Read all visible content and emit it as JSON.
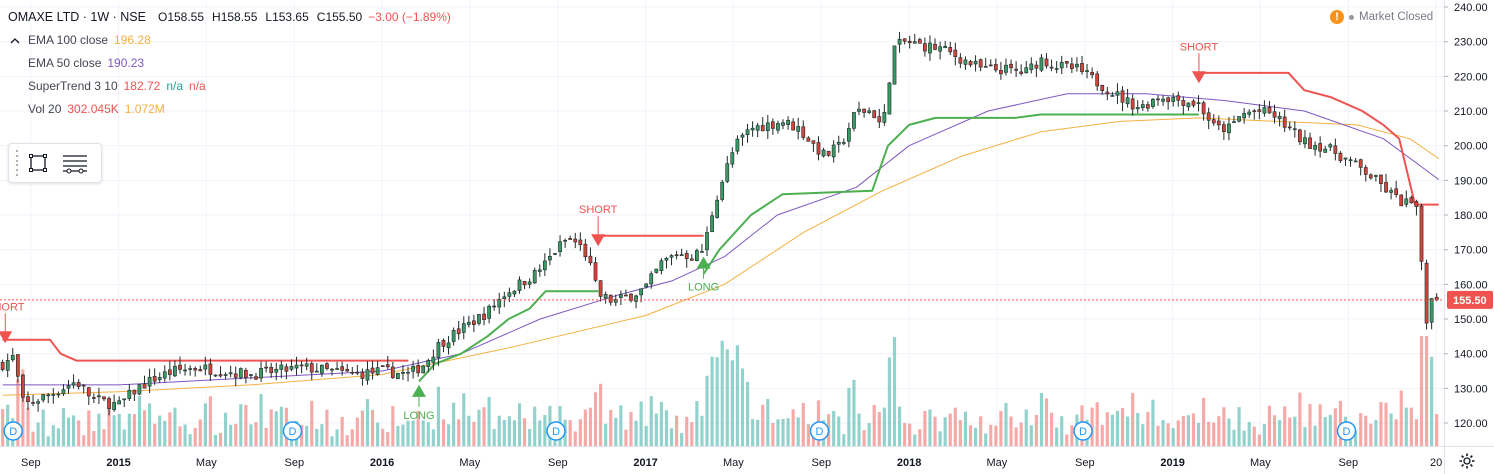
{
  "header": {
    "title": "OMAXE LTD · 1W · NSE",
    "open": "O158.55",
    "high": "H158.55",
    "low": "L153.65",
    "close": "C155.50",
    "change": "−3.00 (−1.89%)"
  },
  "indicators": [
    {
      "name": "EMA 100 close",
      "value": "196.28",
      "color": "#f5b041"
    },
    {
      "name": "EMA 50 close",
      "value": "190.23",
      "color": "#7e57c2"
    },
    {
      "name": "SuperTrend 3 10",
      "value": "182.72",
      "extra1": "n/a",
      "extra2": "n/a",
      "color": "#ef5350",
      "extra1_color": "#26a69a",
      "extra2_color": "#ef5350"
    },
    {
      "name": "Vol 20",
      "value": "302.045K",
      "extra1": "1.072M",
      "color": "#ef5350",
      "extra1_color": "#f5b041"
    }
  ],
  "market_status": "Market Closed",
  "icons": {
    "warning": "warning-icon",
    "settings": "gear-icon",
    "rect": "rectangle-tool-icon",
    "lines": "lines-tool-icon"
  },
  "chart_data": {
    "type": "candlestick",
    "symbol": "OMAXE LTD",
    "interval": "1W",
    "exchange": "NSE",
    "ylim": [
      115,
      240
    ],
    "y_ticks": [
      120,
      130,
      140,
      150,
      160,
      170,
      180,
      190,
      200,
      210,
      220,
      230,
      240
    ],
    "y_tick_labels": [
      "120.00",
      "130.00",
      "140.00",
      "150.00",
      "160.00",
      "170.00",
      "180.00",
      "190.00",
      "200.00",
      "210.00",
      "220.00",
      "230.00",
      "240.00"
    ],
    "x_ticks": [
      {
        "label": "Sep",
        "t": 2014.667
      },
      {
        "label": "2015",
        "t": 2015.0
      },
      {
        "label": "May",
        "t": 2015.333
      },
      {
        "label": "Sep",
        "t": 2015.667
      },
      {
        "label": "2016",
        "t": 2016.0
      },
      {
        "label": "May",
        "t": 2016.333
      },
      {
        "label": "Sep",
        "t": 2016.667
      },
      {
        "label": "2017",
        "t": 2017.0
      },
      {
        "label": "May",
        "t": 2017.333
      },
      {
        "label": "Sep",
        "t": 2017.667
      },
      {
        "label": "2018",
        "t": 2018.0
      },
      {
        "label": "May",
        "t": 2018.333
      },
      {
        "label": "Sep",
        "t": 2018.667
      },
      {
        "label": "2019",
        "t": 2019.0
      },
      {
        "label": "May",
        "t": 2019.333
      },
      {
        "label": "Sep",
        "t": 2019.667
      },
      {
        "label": "20",
        "t": 2020.0
      }
    ],
    "x_range": [
      2014.55,
      2020.03
    ],
    "last_price": 155.5,
    "last_price_label": "155.50",
    "price_anchors": [
      [
        2014.56,
        137
      ],
      [
        2014.6,
        139
      ],
      [
        2014.64,
        125
      ],
      [
        2014.7,
        127
      ],
      [
        2014.76,
        129
      ],
      [
        2014.84,
        132
      ],
      [
        2014.9,
        127
      ],
      [
        2015.0,
        125
      ],
      [
        2015.07,
        130
      ],
      [
        2015.14,
        133
      ],
      [
        2015.21,
        135
      ],
      [
        2015.3,
        136
      ],
      [
        2015.4,
        135
      ],
      [
        2015.5,
        134
      ],
      [
        2015.6,
        135
      ],
      [
        2015.7,
        136
      ],
      [
        2015.8,
        135
      ],
      [
        2015.9,
        134
      ],
      [
        2016.0,
        135
      ],
      [
        2016.1,
        134
      ],
      [
        2016.16,
        137
      ],
      [
        2016.22,
        143
      ],
      [
        2016.28,
        146
      ],
      [
        2016.34,
        149
      ],
      [
        2016.4,
        152
      ],
      [
        2016.46,
        157
      ],
      [
        2016.52,
        160
      ],
      [
        2016.58,
        163
      ],
      [
        2016.62,
        166
      ],
      [
        2016.66,
        170
      ],
      [
        2016.7,
        173
      ],
      [
        2016.74,
        172
      ],
      [
        2016.78,
        168
      ],
      [
        2016.82,
        157
      ],
      [
        2016.88,
        155
      ],
      [
        2016.95,
        157
      ],
      [
        2017.0,
        159
      ],
      [
        2017.06,
        166
      ],
      [
        2017.12,
        169
      ],
      [
        2017.18,
        168
      ],
      [
        2017.22,
        170
      ],
      [
        2017.26,
        183
      ],
      [
        2017.3,
        192
      ],
      [
        2017.34,
        200
      ],
      [
        2017.4,
        205
      ],
      [
        2017.46,
        206
      ],
      [
        2017.52,
        207
      ],
      [
        2017.58,
        205
      ],
      [
        2017.64,
        200
      ],
      [
        2017.68,
        197
      ],
      [
        2017.74,
        200
      ],
      [
        2017.8,
        210
      ],
      [
        2017.86,
        210
      ],
      [
        2017.9,
        205
      ],
      [
        2017.94,
        228
      ],
      [
        2017.98,
        230
      ],
      [
        2018.04,
        229
      ],
      [
        2018.12,
        228
      ],
      [
        2018.2,
        225
      ],
      [
        2018.28,
        222
      ],
      [
        2018.36,
        222
      ],
      [
        2018.44,
        221
      ],
      [
        2018.5,
        225
      ],
      [
        2018.56,
        223
      ],
      [
        2018.64,
        222
      ],
      [
        2018.7,
        219
      ],
      [
        2018.76,
        216
      ],
      [
        2018.82,
        213
      ],
      [
        2018.88,
        211
      ],
      [
        2018.94,
        214
      ],
      [
        2018.98,
        214
      ],
      [
        2019.04,
        213
      ],
      [
        2019.1,
        212
      ],
      [
        2019.16,
        205
      ],
      [
        2019.22,
        205
      ],
      [
        2019.26,
        209
      ],
      [
        2019.32,
        210
      ],
      [
        2019.38,
        209
      ],
      [
        2019.44,
        205
      ],
      [
        2019.5,
        201
      ],
      [
        2019.56,
        200
      ],
      [
        2019.62,
        198
      ],
      [
        2019.68,
        195
      ],
      [
        2019.74,
        192
      ],
      [
        2019.8,
        188
      ],
      [
        2019.86,
        184
      ],
      [
        2019.92,
        183
      ],
      [
        2019.94,
        175
      ],
      [
        2019.955,
        148
      ],
      [
        2019.97,
        152
      ],
      [
        2019.99,
        157
      ],
      [
        2020.01,
        155.5
      ]
    ],
    "supertrend": {
      "short_segments": [
        [
          [
            2014.56,
            144
          ],
          [
            2014.66,
            144
          ],
          [
            2014.74,
            144
          ],
          [
            2014.78,
            140
          ],
          [
            2014.84,
            138
          ],
          [
            2016.1,
            138
          ]
        ],
        [
          [
            2016.82,
            174
          ],
          [
            2016.84,
            174
          ],
          [
            2017.22,
            174
          ]
        ],
        [
          [
            2019.1,
            221
          ],
          [
            2019.36,
            221
          ],
          [
            2019.44,
            221
          ],
          [
            2019.5,
            216
          ],
          [
            2019.6,
            214
          ],
          [
            2019.72,
            210
          ],
          [
            2019.8,
            206
          ],
          [
            2019.86,
            202
          ],
          [
            2019.92,
            183
          ],
          [
            2020.01,
            183
          ]
        ]
      ],
      "long_segments": [
        [
          [
            2016.14,
            132
          ],
          [
            2016.2,
            137
          ],
          [
            2016.3,
            140
          ],
          [
            2016.4,
            145
          ],
          [
            2016.48,
            150
          ],
          [
            2016.56,
            153
          ],
          [
            2016.62,
            158
          ],
          [
            2016.66,
            158
          ],
          [
            2016.82,
            158
          ]
        ],
        [
          [
            2017.22,
            163
          ],
          [
            2017.28,
            170
          ],
          [
            2017.34,
            175
          ],
          [
            2017.4,
            180
          ],
          [
            2017.46,
            183
          ],
          [
            2017.52,
            186
          ],
          [
            2017.86,
            187
          ],
          [
            2017.92,
            200
          ],
          [
            2018.0,
            206
          ],
          [
            2018.1,
            208
          ],
          [
            2018.4,
            208
          ],
          [
            2018.5,
            209
          ],
          [
            2019.1,
            209
          ]
        ]
      ]
    },
    "ema100": [
      [
        2014.56,
        128
      ],
      [
        2015.0,
        129
      ],
      [
        2015.5,
        131
      ],
      [
        2016.0,
        134
      ],
      [
        2016.5,
        142
      ],
      [
        2017.0,
        151
      ],
      [
        2017.3,
        160
      ],
      [
        2017.6,
        175
      ],
      [
        2017.9,
        187
      ],
      [
        2018.2,
        197
      ],
      [
        2018.5,
        204
      ],
      [
        2018.8,
        207
      ],
      [
        2019.1,
        208
      ],
      [
        2019.4,
        207
      ],
      [
        2019.7,
        206
      ],
      [
        2019.9,
        202
      ],
      [
        2020.01,
        196.28
      ]
    ],
    "ema50": [
      [
        2014.56,
        131
      ],
      [
        2015.0,
        131
      ],
      [
        2015.5,
        133
      ],
      [
        2016.0,
        135
      ],
      [
        2016.3,
        140
      ],
      [
        2016.6,
        150
      ],
      [
        2016.9,
        157
      ],
      [
        2017.1,
        161
      ],
      [
        2017.3,
        168
      ],
      [
        2017.5,
        180
      ],
      [
        2017.8,
        188
      ],
      [
        2018.0,
        200
      ],
      [
        2018.3,
        210
      ],
      [
        2018.6,
        215
      ],
      [
        2018.9,
        215
      ],
      [
        2019.2,
        213
      ],
      [
        2019.5,
        210
      ],
      [
        2019.8,
        202
      ],
      [
        2020.01,
        190.23
      ]
    ],
    "signals": [
      {
        "type": "SHORT",
        "t": 2014.57,
        "price": 143
      },
      {
        "type": "LONG",
        "t": 2016.14,
        "price": 131
      },
      {
        "type": "SHORT",
        "t": 2016.82,
        "price": 171
      },
      {
        "type": "LONG",
        "t": 2017.22,
        "price": 168
      },
      {
        "type": "SHORT",
        "t": 2019.1,
        "price": 218
      }
    ],
    "dividends": [
      2014.6,
      2015.66,
      2016.66,
      2017.66,
      2018.66,
      2019.66
    ],
    "dividend_label": "D",
    "volume": {
      "max_height_price_units": 30,
      "base": 116
    }
  }
}
